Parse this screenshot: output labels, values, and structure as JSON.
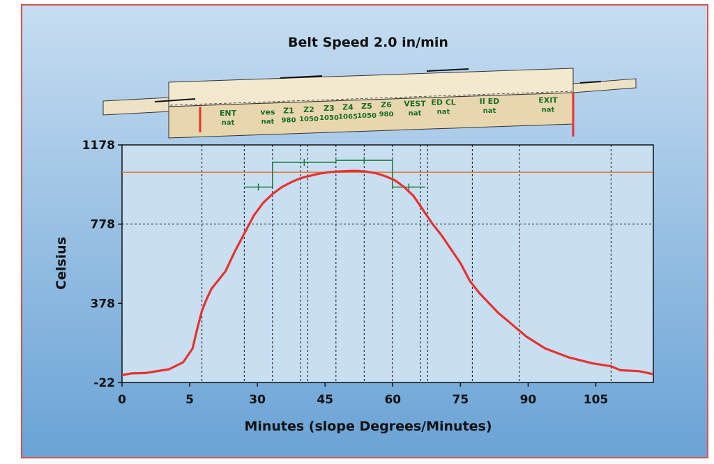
{
  "chart_data": {
    "type": "line",
    "title": "Belt Speed 2.0 in/min",
    "xlabel": "Minutes (slope Degrees/Minutes)",
    "ylabel": "Celsius",
    "x_tick_labels": [
      "0",
      "5",
      "30",
      "45",
      "60",
      "75",
      "90",
      "105"
    ],
    "y_ticks": [
      -22,
      378,
      778,
      1178
    ],
    "y_tick_labels": [
      "-22",
      "378",
      "778",
      "1178"
    ],
    "ylim": [
      -22,
      1178
    ],
    "xlim": [
      0,
      113
    ],
    "grid": "dashed vertical zone boundaries and dashed line at 778",
    "reference_line": {
      "value": 1040,
      "color": "#e07b39"
    },
    "zones": [
      {
        "name": "ENT",
        "setting": "nat",
        "start": 17,
        "end": 26
      },
      {
        "name": "ves",
        "setting": "nat",
        "start": 26,
        "end": 32
      },
      {
        "name": "Z1",
        "setting": "980",
        "start": 32,
        "end": 38
      },
      {
        "name": "Z2",
        "setting": "1050",
        "start": 38,
        "end": 44
      },
      {
        "name": "Z3",
        "setting": "1050",
        "start": 44,
        "end": 48
      },
      {
        "name": "Z4",
        "setting": "1065",
        "start": 48,
        "end": 53
      },
      {
        "name": "Z5",
        "setting": "1050",
        "start": 53,
        "end": 57
      },
      {
        "name": "Z6",
        "setting": "980",
        "start": 57,
        "end": 62
      },
      {
        "name": "VEST",
        "setting": "nat",
        "start": 62,
        "end": 67
      },
      {
        "name": "ED CL",
        "setting": "nat",
        "start": 67,
        "end": 76
      },
      {
        "name": "II ED",
        "setting": "nat",
        "start": 76,
        "end": 91
      },
      {
        "name": "EXIT",
        "setting": "nat",
        "start": 91,
        "end": 104
      }
    ],
    "zone_boundaries_x": [
      17,
      26,
      32,
      38,
      39.5,
      45.5,
      51.5,
      57.5,
      63.5,
      65,
      74.5,
      84.5,
      104
    ],
    "setpoint_steps": [
      {
        "x_start": 26,
        "x_end": 32,
        "value": 965
      },
      {
        "x_start": 32,
        "x_end": 45.5,
        "value": 1090
      },
      {
        "x_start": 45.5,
        "x_end": 57.5,
        "value": 1100
      },
      {
        "x_start": 57.5,
        "x_end": 64.5,
        "value": 965
      }
    ],
    "series": [
      {
        "color": "#e8312f",
        "x": [
          0,
          2,
          5,
          10,
          13,
          15,
          16,
          17,
          18,
          19,
          20,
          22,
          24,
          26,
          28,
          30,
          32,
          34,
          36,
          38,
          40,
          42,
          44,
          46,
          48,
          50,
          52,
          54,
          56,
          58,
          60,
          62,
          64,
          66,
          68,
          70,
          72,
          74,
          76,
          78,
          80,
          82,
          84,
          86,
          88,
          90,
          95,
          100,
          104,
          106,
          110,
          113
        ],
        "y": [
          15,
          24,
          26,
          45,
          80,
          150,
          250,
          340,
          400,
          450,
          480,
          540,
          640,
          730,
          820,
          885,
          930,
          965,
          990,
          1010,
          1022,
          1033,
          1040,
          1044,
          1046,
          1047,
          1043,
          1035,
          1020,
          1000,
          965,
          920,
          850,
          780,
          720,
          650,
          580,
          490,
          430,
          380,
          330,
          290,
          250,
          210,
          180,
          150,
          105,
          75,
          60,
          40,
          35,
          20
        ]
      }
    ]
  }
}
